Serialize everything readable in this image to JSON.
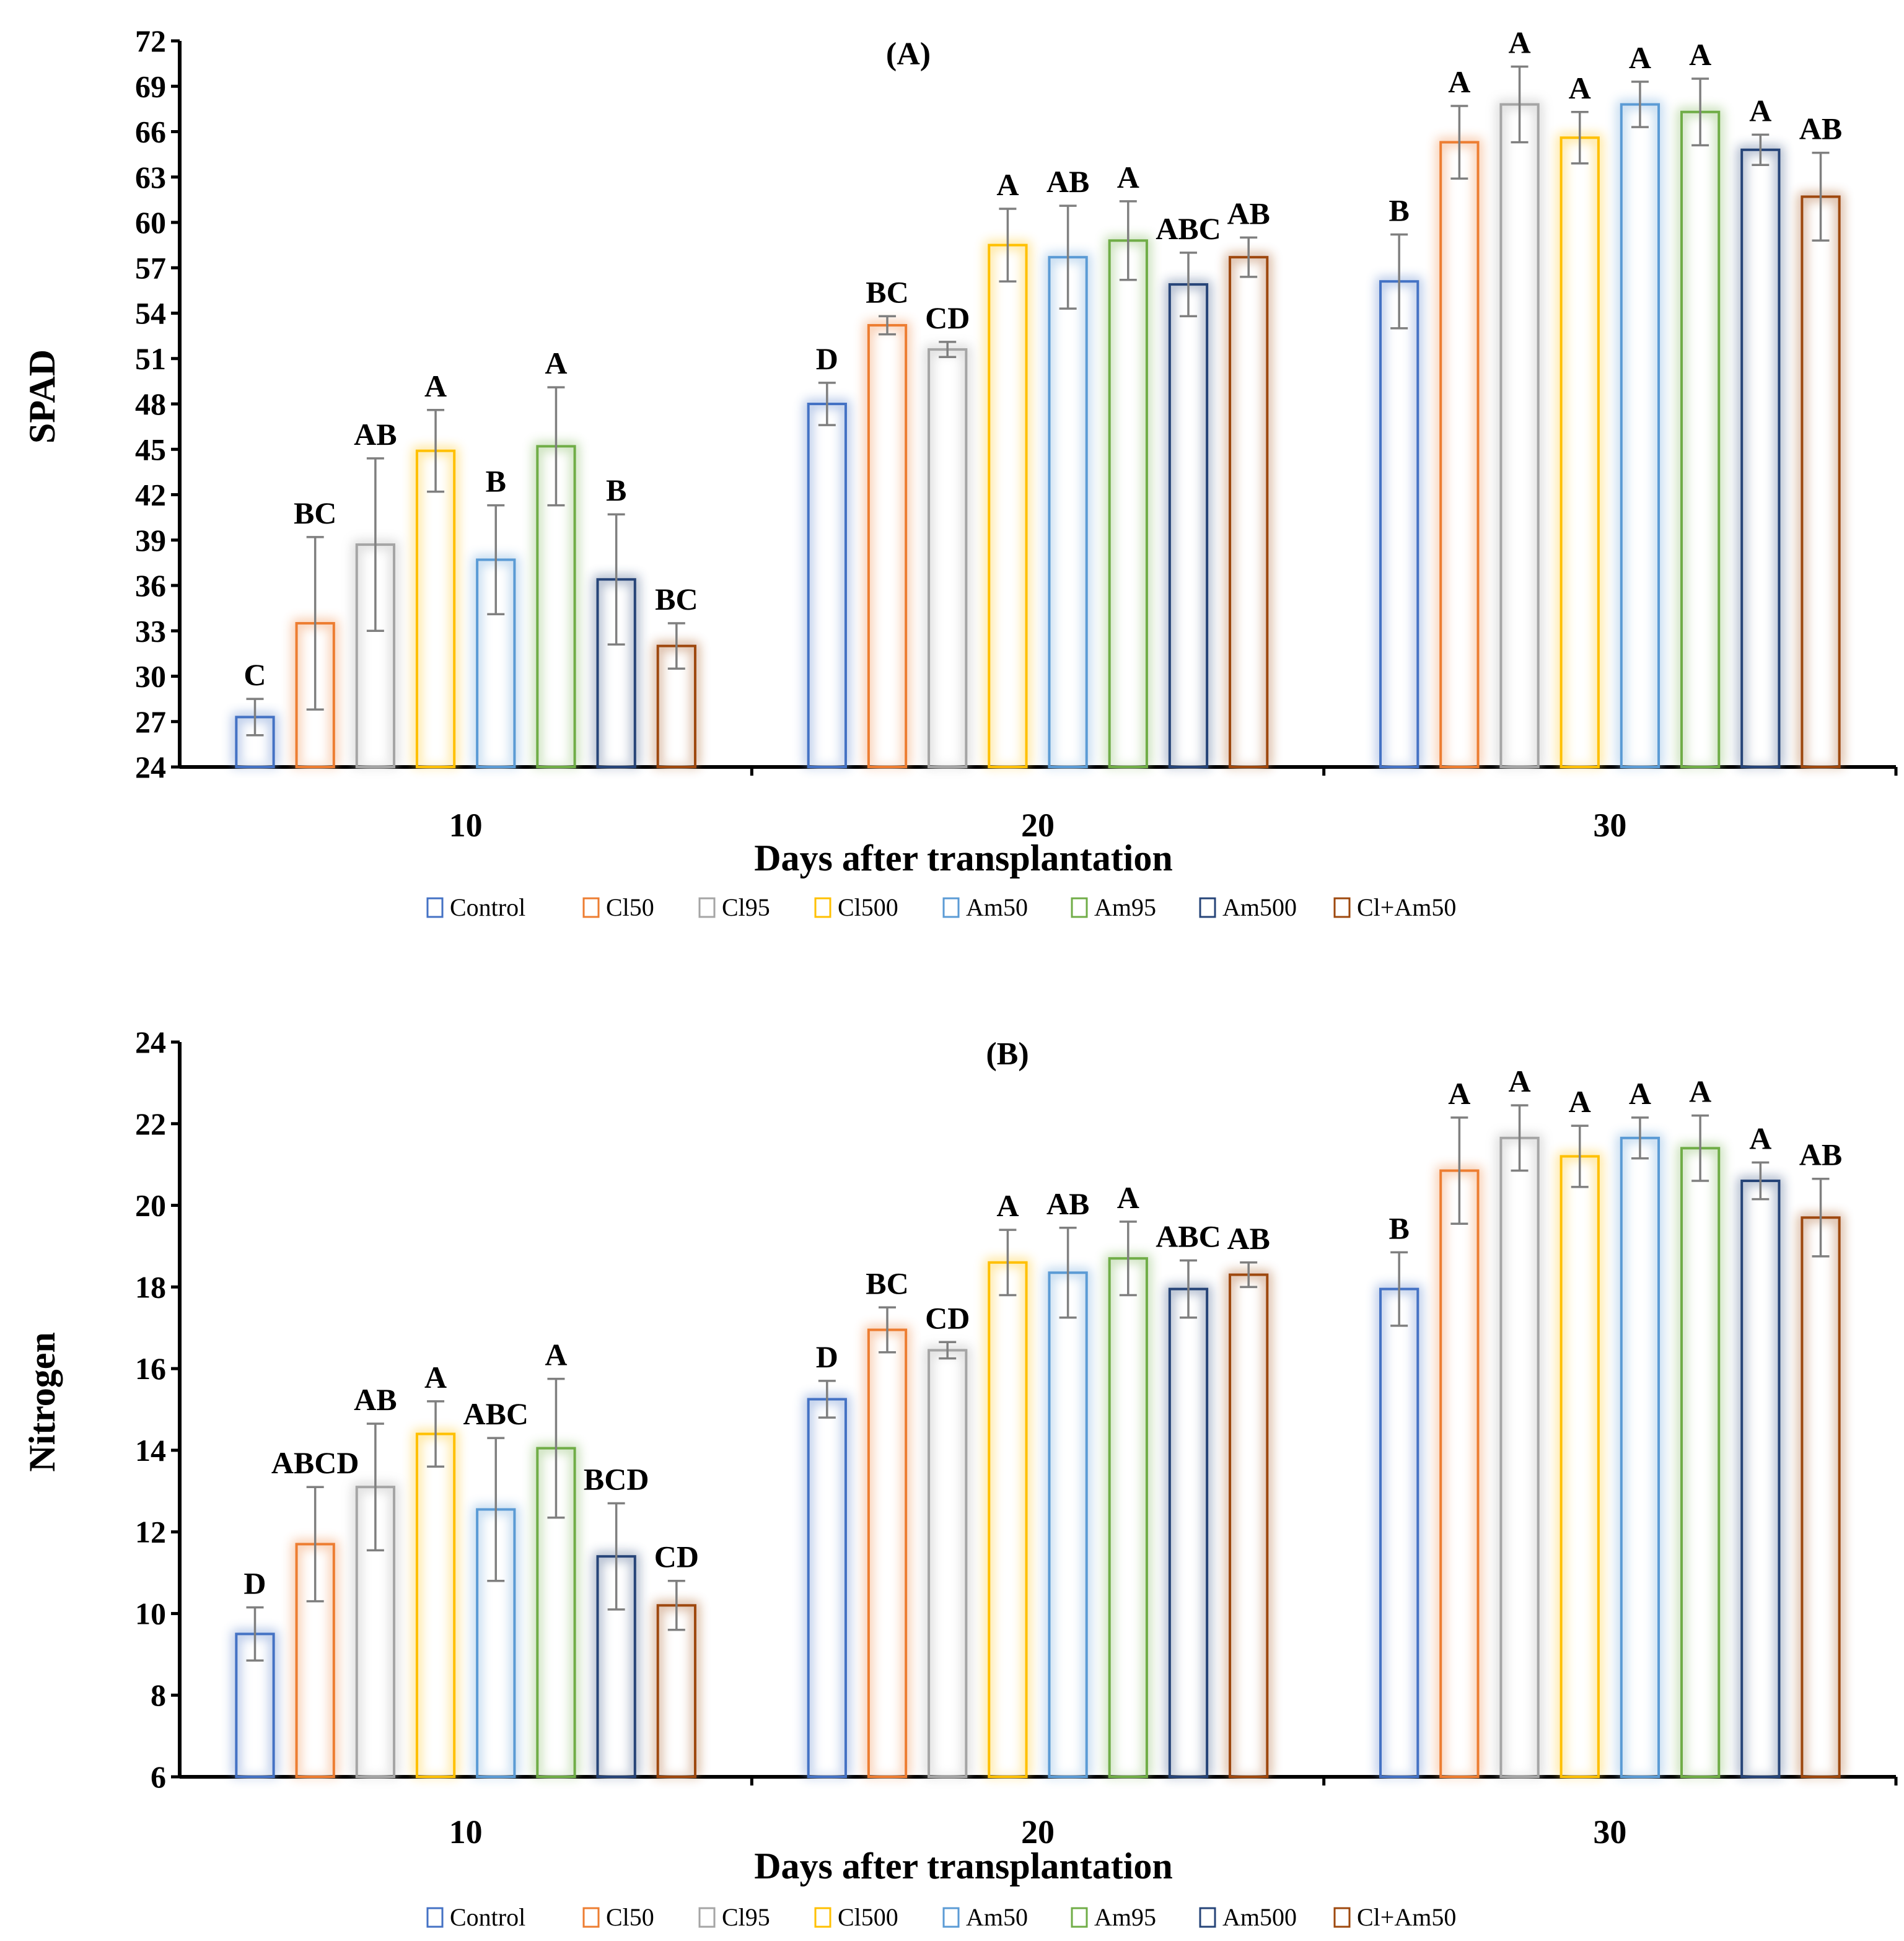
{
  "chart_data": [
    {
      "type": "bar",
      "title": "(A)",
      "xlabel": "Days after transplantation",
      "ylabel": "SPAD",
      "ylim": [
        24,
        72
      ],
      "ytick_step": 3,
      "categories": [
        "10",
        "20",
        "30"
      ],
      "legend_placement": "bottom",
      "series": [
        {
          "name": "Control",
          "color": "#4472C4",
          "values": [
            27.3,
            48.0,
            56.1
          ],
          "errors": [
            1.2,
            1.4,
            3.1
          ],
          "letters": [
            "C",
            "D",
            "B"
          ]
        },
        {
          "name": "Cl50",
          "color": "#ED7D31",
          "values": [
            33.5,
            53.2,
            65.3
          ],
          "errors": [
            5.7,
            0.6,
            2.4
          ],
          "letters": [
            "BC",
            "BC",
            "A"
          ]
        },
        {
          "name": "Cl95",
          "color": "#A5A5A5",
          "values": [
            38.7,
            51.6,
            67.8
          ],
          "errors": [
            5.7,
            0.5,
            2.5
          ],
          "letters": [
            "AB",
            "CD",
            "A"
          ]
        },
        {
          "name": "Cl500",
          "color": "#FFC000",
          "values": [
            44.9,
            58.5,
            65.6
          ],
          "errors": [
            2.7,
            2.4,
            1.7
          ],
          "letters": [
            "A",
            "A",
            "A"
          ]
        },
        {
          "name": "Am50",
          "color": "#5B9BD5",
          "values": [
            37.7,
            57.7,
            67.8
          ],
          "errors": [
            3.6,
            3.4,
            1.5
          ],
          "letters": [
            "B",
            "AB",
            "A"
          ]
        },
        {
          "name": "Am95",
          "color": "#70AD47",
          "values": [
            45.2,
            58.8,
            67.3
          ],
          "errors": [
            3.9,
            2.6,
            2.2
          ],
          "letters": [
            "A",
            "A",
            "A"
          ]
        },
        {
          "name": "Am500",
          "color": "#264478",
          "values": [
            36.4,
            55.9,
            64.8
          ],
          "errors": [
            4.3,
            2.1,
            1.0
          ],
          "letters": [
            "B",
            "ABC",
            "A"
          ]
        },
        {
          "name": "Cl+Am50",
          "color": "#9E480E",
          "values": [
            32.0,
            57.7,
            61.7
          ],
          "errors": [
            1.5,
            1.3,
            2.9
          ],
          "letters": [
            "BC",
            "AB",
            "AB"
          ]
        }
      ]
    },
    {
      "type": "bar",
      "title": "(B)",
      "xlabel": "Days after transplantation",
      "ylabel": "Nitrogen",
      "ylim": [
        6,
        24
      ],
      "ytick_step": 2,
      "categories": [
        "10",
        "20",
        "30"
      ],
      "legend_placement": "bottom",
      "series": [
        {
          "name": "Control",
          "color": "#4472C4",
          "values": [
            9.5,
            15.25,
            17.95
          ],
          "errors": [
            0.65,
            0.45,
            0.9
          ],
          "letters": [
            "D",
            "D",
            "B"
          ]
        },
        {
          "name": "Cl50",
          "color": "#ED7D31",
          "values": [
            11.7,
            16.95,
            20.85
          ],
          "errors": [
            1.4,
            0.55,
            1.3
          ],
          "letters": [
            "ABCD",
            "BC",
            "A"
          ]
        },
        {
          "name": "Cl95",
          "color": "#A5A5A5",
          "values": [
            13.1,
            16.45,
            21.65
          ],
          "errors": [
            1.55,
            0.2,
            0.8
          ],
          "letters": [
            "AB",
            "CD",
            "A"
          ]
        },
        {
          "name": "Cl500",
          "color": "#FFC000",
          "values": [
            14.4,
            18.6,
            21.2
          ],
          "errors": [
            0.8,
            0.8,
            0.75
          ],
          "letters": [
            "A",
            "A",
            "A"
          ]
        },
        {
          "name": "Am50",
          "color": "#5B9BD5",
          "values": [
            12.55,
            18.35,
            21.65
          ],
          "errors": [
            1.75,
            1.1,
            0.5
          ],
          "letters": [
            "ABC",
            "AB",
            "A"
          ]
        },
        {
          "name": "Am95",
          "color": "#70AD47",
          "values": [
            14.05,
            18.7,
            21.4
          ],
          "errors": [
            1.7,
            0.9,
            0.8
          ],
          "letters": [
            "A",
            "A",
            "A"
          ]
        },
        {
          "name": "Am500",
          "color": "#264478",
          "values": [
            11.4,
            17.95,
            20.6
          ],
          "errors": [
            1.3,
            0.7,
            0.45
          ],
          "letters": [
            "BCD",
            "ABC",
            "A"
          ]
        },
        {
          "name": "Cl+Am50",
          "color": "#9E480E",
          "values": [
            10.2,
            18.3,
            19.7
          ],
          "errors": [
            0.6,
            0.3,
            0.95
          ],
          "letters": [
            "CD",
            "AB",
            "AB"
          ]
        }
      ]
    }
  ]
}
